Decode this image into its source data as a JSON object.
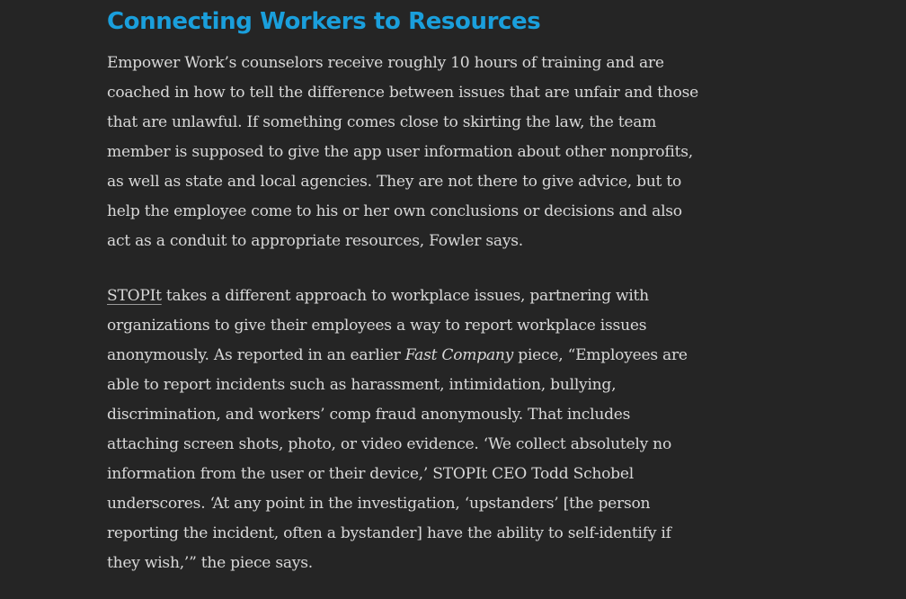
{
  "heading": "Connecting Workers to Resources",
  "paragraph1": {
    "lines": [
      "Empower Work’s counselors receive roughly 10 hours of training and are",
      "coached in how to tell the difference between issues that are unfair and those",
      "that are unlawful. If something comes close to skirting the law, the team",
      "member is supposed to give the app user information about other nonprofits,",
      "as well as state and local agencies. They are not there to give advice, but to",
      "help the employee come to his or her own conclusions or decisions and also",
      "act as a conduit to appropriate resources, Fowler says."
    ]
  },
  "paragraph2": {
    "link_text": "STOPIt",
    "line1_rest": " takes a different approach to workplace issues, partnering with",
    "line2": "organizations to give their employees a way to report workplace issues",
    "line3_before": "anonymously. As reported in an earlier ",
    "line3_italic": "Fast Company",
    "line3_after": " piece, “Employees are",
    "lines_rest": [
      "able to report incidents such as harassment, intimidation, bullying,",
      "discrimination, and workers’ comp fraud anonymously. That includes",
      "attaching screen shots, photo, or video evidence. ‘We collect absolutely no",
      "information from the user or their device,’ STOPIt CEO Todd Schobel",
      "underscores. ‘At any point in the investigation, ‘upstanders’ [the person",
      "reporting the incident, often a bystander] have the ability to self-identify if",
      "they wish,’” the piece says."
    ]
  }
}
